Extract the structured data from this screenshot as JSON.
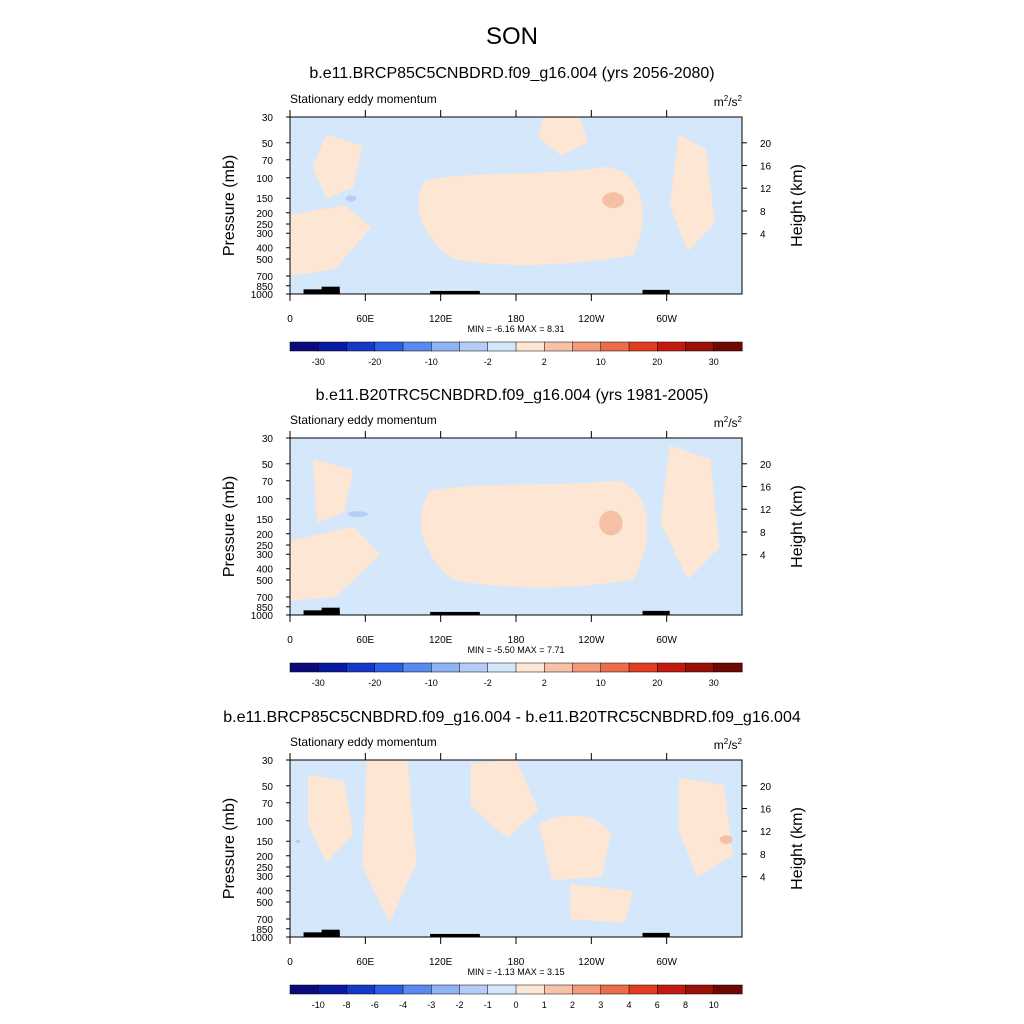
{
  "figure": {
    "title": "SON"
  },
  "chart_data": [
    {
      "type": "heatmap",
      "title": "b.e11.BRCP85C5CNBDRD.f09_g16.004 (yrs 2056-2080)",
      "subtitle_left": "Stationary eddy momentum",
      "units": "m²/s²",
      "units_base": "m",
      "units_sup1": "2",
      "units_mid": "/s",
      "units_sup2": "2",
      "ylabel": "Pressure (mb)",
      "ylabel_right": "Height (km)",
      "xticks": [
        "0",
        "60E",
        "120E",
        "180",
        "120W",
        "60W"
      ],
      "yticks": [
        "30",
        "50",
        "70",
        "100",
        "150",
        "200",
        "250",
        "300",
        "400",
        "500",
        "700",
        "850",
        "1000"
      ],
      "yticks_right": [
        "20",
        "16",
        "12",
        "8",
        "4"
      ],
      "stats": "MIN =  -6.16  MAX =   8.31",
      "min": -6.16,
      "max": 8.31,
      "colorbar": {
        "labels": [
          "-30",
          "-20",
          "-10",
          "-2",
          "2",
          "10",
          "20",
          "30"
        ],
        "colors": [
          "#0a0a7a",
          "#0a1aa0",
          "#1538c8",
          "#2e5ee6",
          "#5b8aef",
          "#8fb3f3",
          "#b5cdf6",
          "#d3e6fa",
          "#fde6d3",
          "#f7c2a7",
          "#f39a7a",
          "#ec6d4c",
          "#e33e22",
          "#c21a10",
          "#981007",
          "#6e0803"
        ]
      }
    },
    {
      "type": "heatmap",
      "title": "b.e11.B20TRC5CNBDRD.f09_g16.004 (yrs 1981-2005)",
      "subtitle_left": "Stationary eddy momentum",
      "units": "m²/s²",
      "units_base": "m",
      "units_sup1": "2",
      "units_mid": "/s",
      "units_sup2": "2",
      "ylabel": "Pressure (mb)",
      "ylabel_right": "Height (km)",
      "xticks": [
        "0",
        "60E",
        "120E",
        "180",
        "120W",
        "60W"
      ],
      "yticks": [
        "30",
        "50",
        "70",
        "100",
        "150",
        "200",
        "250",
        "300",
        "400",
        "500",
        "700",
        "850",
        "1000"
      ],
      "yticks_right": [
        "20",
        "16",
        "12",
        "8",
        "4"
      ],
      "stats": "MIN =  -5.50  MAX =   7.71",
      "min": -5.5,
      "max": 7.71,
      "colorbar": {
        "labels": [
          "-30",
          "-20",
          "-10",
          "-2",
          "2",
          "10",
          "20",
          "30"
        ],
        "colors": [
          "#0a0a7a",
          "#0a1aa0",
          "#1538c8",
          "#2e5ee6",
          "#5b8aef",
          "#8fb3f3",
          "#b5cdf6",
          "#d3e6fa",
          "#fde6d3",
          "#f7c2a7",
          "#f39a7a",
          "#ec6d4c",
          "#e33e22",
          "#c21a10",
          "#981007",
          "#6e0803"
        ]
      }
    },
    {
      "type": "heatmap",
      "title": "b.e11.BRCP85C5CNBDRD.f09_g16.004 - b.e11.B20TRC5CNBDRD.f09_g16.004",
      "subtitle_left": "Stationary eddy momentum",
      "units": "m²/s²",
      "units_base": "m",
      "units_sup1": "2",
      "units_mid": "/s",
      "units_sup2": "2",
      "ylabel": "Pressure (mb)",
      "ylabel_right": "Height (km)",
      "xticks": [
        "0",
        "60E",
        "120E",
        "180",
        "120W",
        "60W"
      ],
      "yticks": [
        "30",
        "50",
        "70",
        "100",
        "150",
        "200",
        "250",
        "300",
        "400",
        "500",
        "700",
        "850",
        "1000"
      ],
      "yticks_right": [
        "20",
        "16",
        "12",
        "8",
        "4"
      ],
      "stats": "MIN =  -1.13  MAX =   3.15",
      "min": -1.13,
      "max": 3.15,
      "colorbar": {
        "labels": [
          "-10",
          "-8",
          "-6",
          "-4",
          "-3",
          "-2",
          "-1",
          "0",
          "1",
          "2",
          "3",
          "4",
          "6",
          "8",
          "10"
        ],
        "colors": [
          "#0a0a7a",
          "#0a1aa0",
          "#1538c8",
          "#2e5ee6",
          "#5b8aef",
          "#8fb3f3",
          "#b5cdf6",
          "#d3e6fa",
          "#fde6d3",
          "#f7c2a7",
          "#f39a7a",
          "#ec6d4c",
          "#e33e22",
          "#c21a10",
          "#981007",
          "#6e0803"
        ]
      }
    }
  ]
}
